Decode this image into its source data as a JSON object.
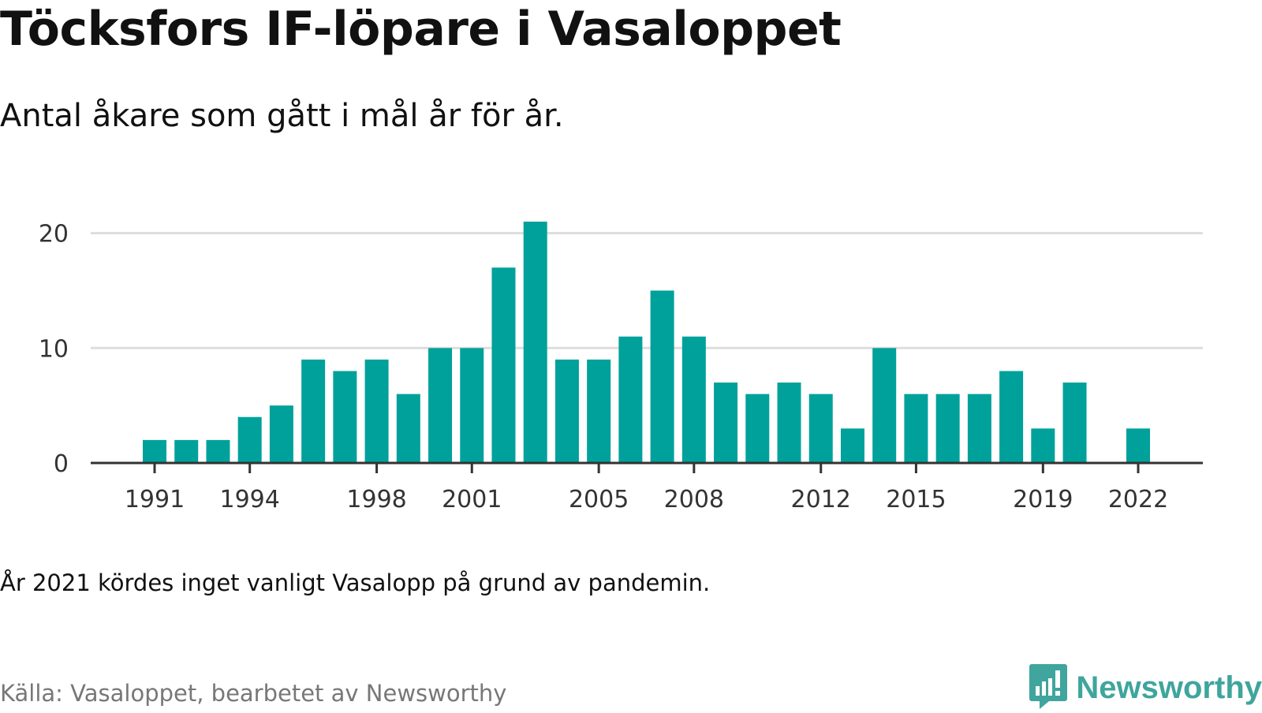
{
  "title": "Töcksfors IF-löpare i Vasaloppet",
  "subtitle": "Antal åkare som gått i mål år för år.",
  "note": "År 2021 kördes inget vanligt Vasalopp på grund av pandemin.",
  "source": "Källa: Vasaloppet, bearbetet av Newsworthy",
  "brand": {
    "name": "Newsworthy",
    "icon": "newsworthy-logo-icon",
    "color": "#3fa59d"
  },
  "colors": {
    "bar": "#00a19b",
    "grid": "#dddddd",
    "axis": "#333333"
  },
  "chart_data": {
    "type": "bar",
    "x": [
      1991,
      1992,
      1993,
      1994,
      1995,
      1996,
      1997,
      1998,
      1999,
      2000,
      2001,
      2002,
      2003,
      2004,
      2005,
      2006,
      2007,
      2008,
      2009,
      2010,
      2011,
      2012,
      2013,
      2014,
      2015,
      2016,
      2017,
      2018,
      2019,
      2020,
      2021,
      2022
    ],
    "values": [
      2,
      2,
      2,
      4,
      5,
      9,
      8,
      9,
      6,
      10,
      10,
      17,
      21,
      9,
      9,
      11,
      15,
      11,
      7,
      6,
      7,
      6,
      3,
      10,
      6,
      6,
      6,
      8,
      3,
      7,
      null,
      3
    ],
    "x_ticks": [
      "1991",
      "1994",
      "1998",
      "2001",
      "2005",
      "2008",
      "2012",
      "2015",
      "2019",
      "2022"
    ],
    "y_ticks": [
      "0",
      "10",
      "20"
    ],
    "ylim": [
      0,
      21
    ],
    "grid": true,
    "title": "Töcksfors IF-löpare i Vasaloppet",
    "xlabel": "",
    "ylabel": ""
  }
}
